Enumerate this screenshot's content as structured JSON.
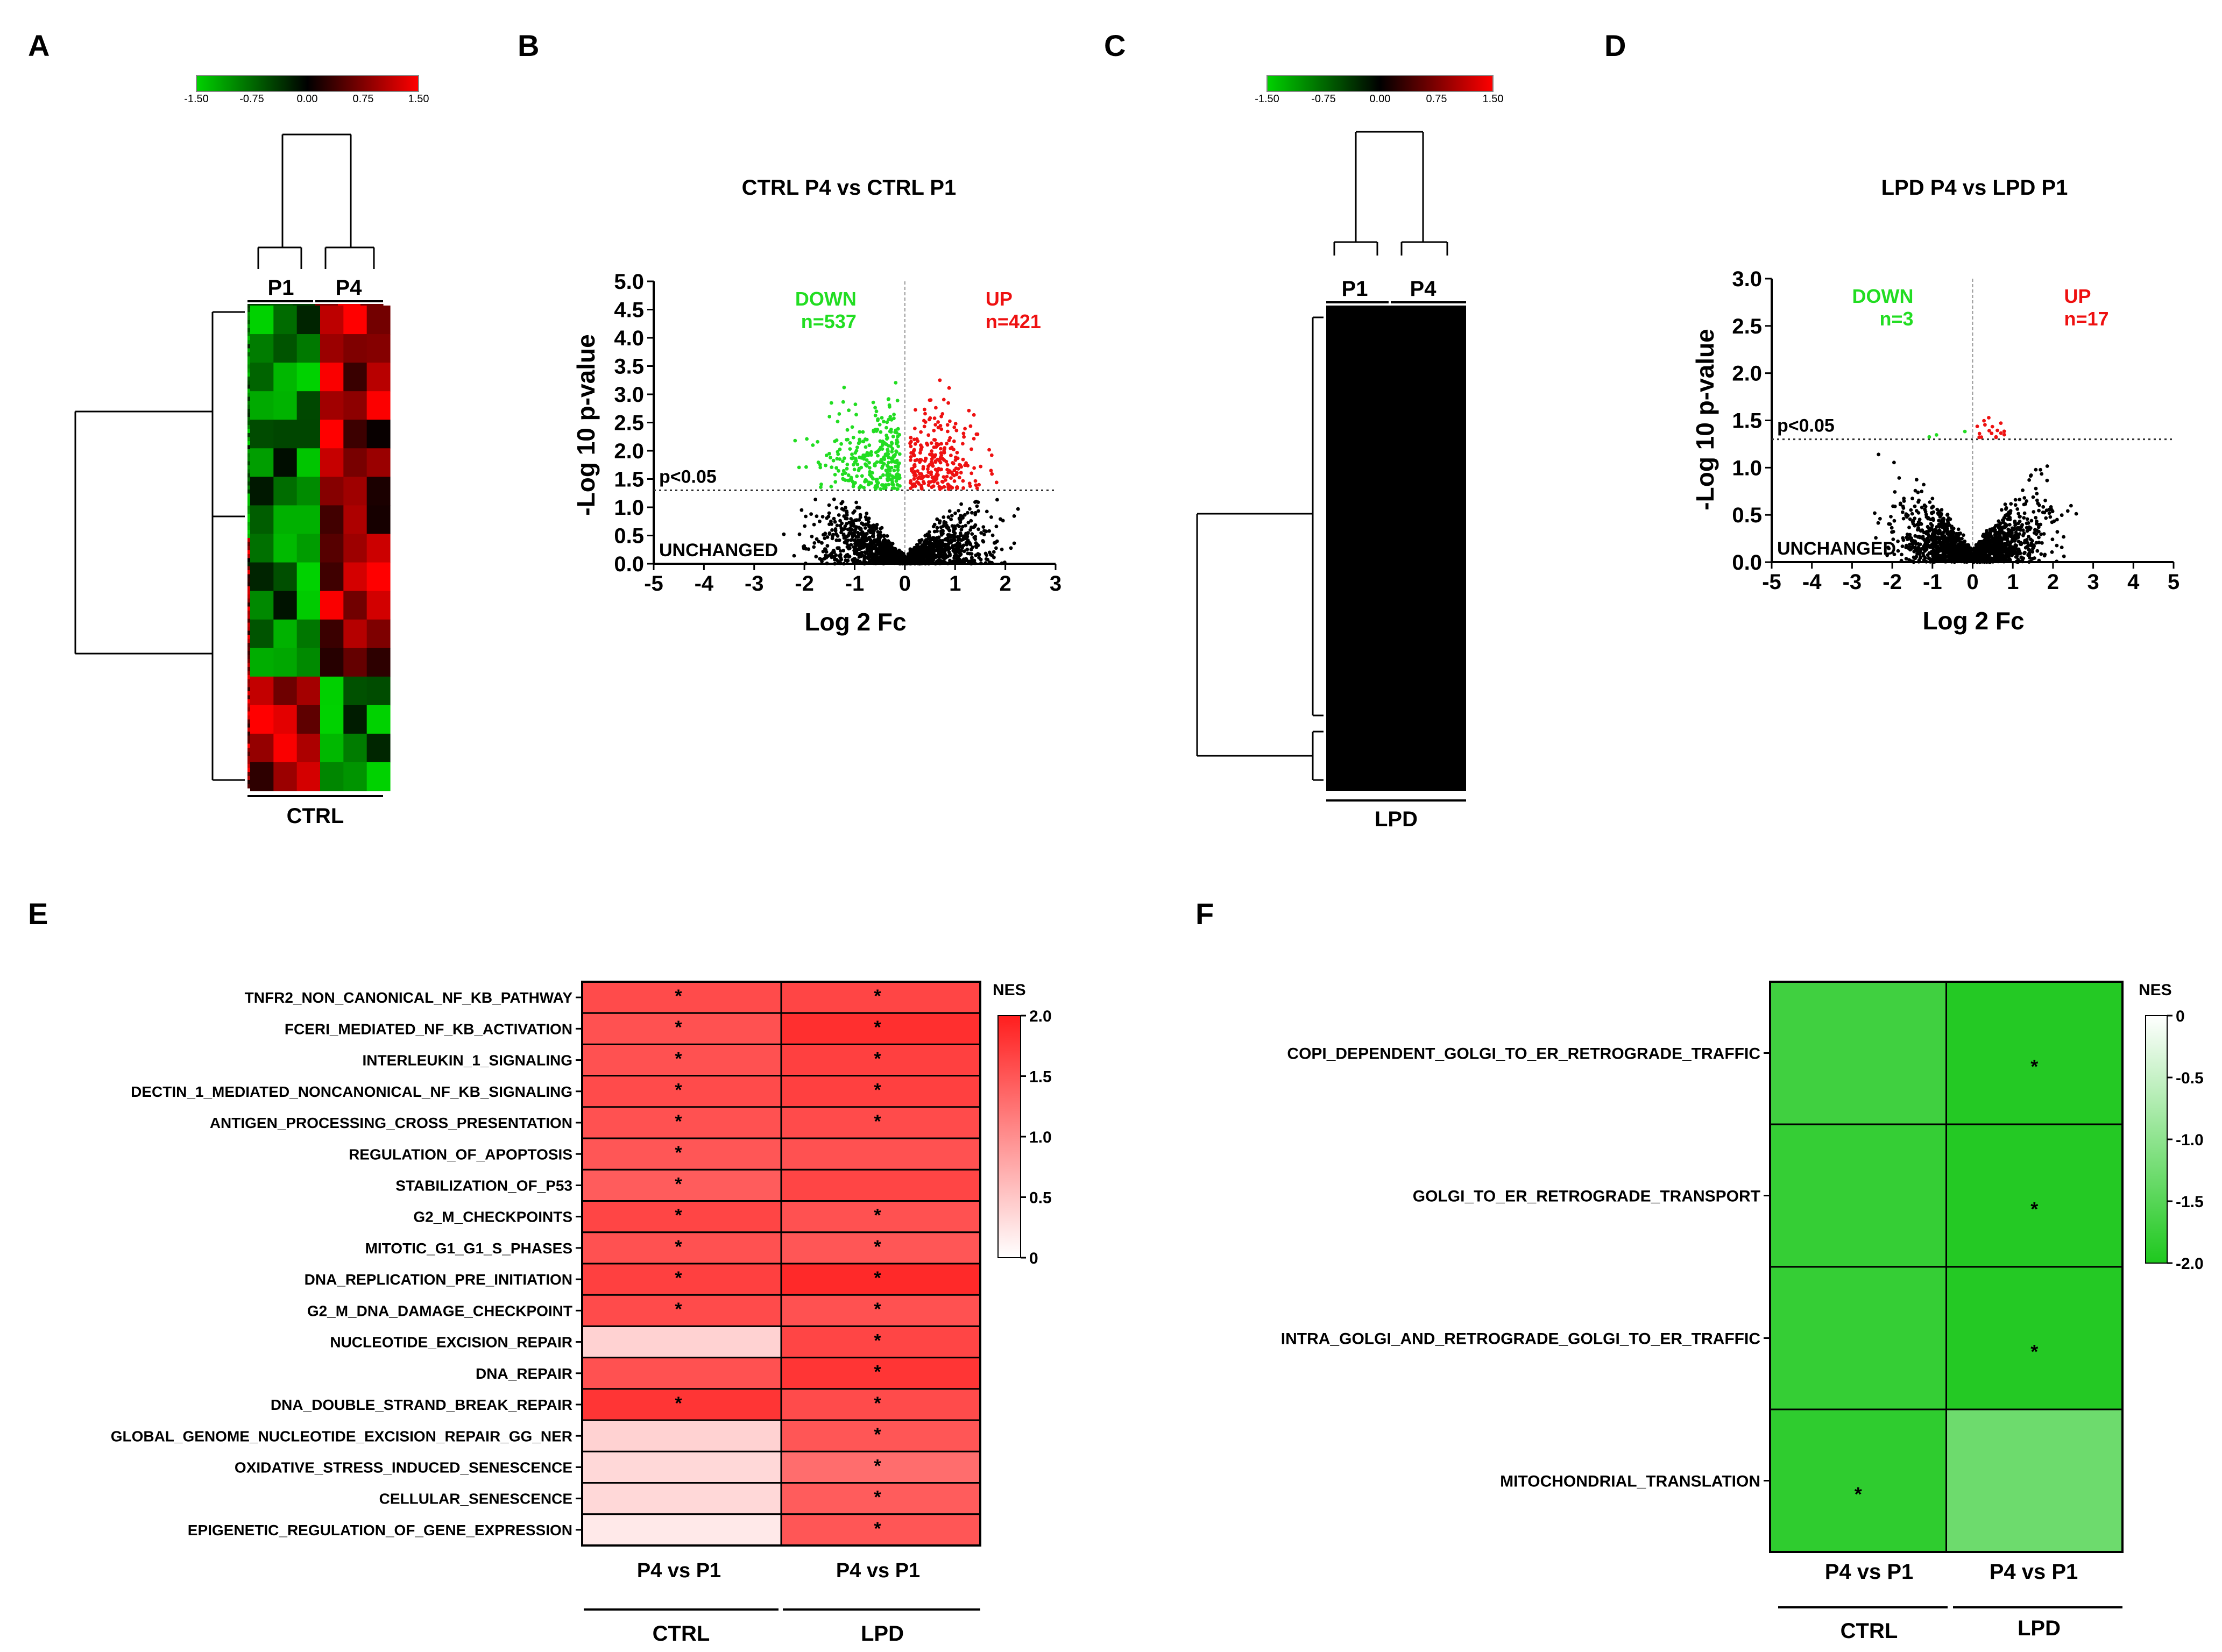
{
  "chart_data": [
    {
      "id": "A",
      "panel_label": "A",
      "type": "heatmap",
      "group_label": "CTRL",
      "column_groups": [
        "P1",
        "P4"
      ],
      "scale": {
        "min": -1.5,
        "max": 1.5,
        "ticks": [
          "-1.50",
          "-0.75",
          "0.00",
          "0.75",
          "1.50"
        ],
        "colors": [
          "#00d200",
          "#000000",
          "#ff0000"
        ]
      }
    },
    {
      "id": "B",
      "panel_label": "B",
      "type": "scatter",
      "title": "CTRL P4 vs CTRL P1",
      "xlabel": "Log 2 Fc",
      "ylabel": "-Log 10 p-value",
      "xlim": [
        -5,
        3
      ],
      "ylim": [
        0,
        5
      ],
      "xticks": [
        "-5",
        "-4",
        "-3",
        "-2",
        "-1",
        "0",
        "1",
        "2",
        "3"
      ],
      "yticks": [
        "0.0",
        "0.5",
        "1.0",
        "1.5",
        "2.0",
        "2.5",
        "3.0",
        "3.5",
        "4.0",
        "4.5",
        "5.0"
      ],
      "threshold": 1.3,
      "threshold_label": "p<0.05",
      "unchanged_label": "UNCHANGED",
      "down_label": "DOWN",
      "down_count": "n=537",
      "up_label": "UP",
      "up_count": "n=421",
      "colors": {
        "down": "#22dd22",
        "up": "#ee1111",
        "unchanged": "#000000"
      }
    },
    {
      "id": "C",
      "panel_label": "C",
      "type": "heatmap",
      "group_label": "LPD",
      "column_groups": [
        "P1",
        "P4"
      ],
      "scale": {
        "min": -1.5,
        "max": 1.5,
        "ticks": [
          "-1.50",
          "-0.75",
          "0.00",
          "0.75",
          "1.50"
        ],
        "colors": [
          "#00d200",
          "#000000",
          "#ff0000"
        ]
      }
    },
    {
      "id": "D",
      "panel_label": "D",
      "type": "scatter",
      "title": "LPD P4 vs LPD P1",
      "xlabel": "Log 2 Fc",
      "ylabel": "-Log 10 p-value",
      "xlim": [
        -5,
        5
      ],
      "ylim": [
        0,
        3
      ],
      "xticks": [
        "-5",
        "-4",
        "-3",
        "-2",
        "-1",
        "0",
        "1",
        "2",
        "3",
        "4",
        "5"
      ],
      "yticks": [
        "0.0",
        "0.5",
        "1.0",
        "1.5",
        "2.0",
        "2.5",
        "3.0"
      ],
      "threshold": 1.3,
      "threshold_label": "p<0.05",
      "unchanged_label": "UNCHANGED",
      "down_label": "DOWN",
      "down_count": "n=3",
      "up_label": "UP",
      "up_count": "n=17",
      "colors": {
        "down": "#22dd22",
        "up": "#ee1111",
        "unchanged": "#000000"
      }
    },
    {
      "id": "E",
      "panel_label": "E",
      "type": "heatmap",
      "columns": [
        "P4 vs P1",
        "P4 vs P1"
      ],
      "groups": [
        "CTRL",
        "LPD"
      ],
      "legend_title": "NES",
      "scale": {
        "min": 0,
        "max": 2,
        "ticks": [
          "0",
          "0.5",
          "1.0",
          "1.5",
          "2.0"
        ],
        "colors": [
          "#ffffff",
          "#ff1e1e"
        ]
      },
      "rows": [
        {
          "label": "TNFR2_NON_CANONICAL_NF_KB_PATHWAY",
          "values": [
            1.6,
            1.65
          ],
          "sig": [
            true,
            true
          ]
        },
        {
          "label": "FCERI_MEDIATED_NF_KB_ACTIVATION",
          "values": [
            1.55,
            1.85
          ],
          "sig": [
            true,
            true
          ]
        },
        {
          "label": "INTERLEUKIN_1_SIGNALING",
          "values": [
            1.55,
            1.7
          ],
          "sig": [
            true,
            true
          ]
        },
        {
          "label": "DECTIN_1_MEDIATED_NONCANONICAL_NF_KB_SIGNALING",
          "values": [
            1.6,
            1.7
          ],
          "sig": [
            true,
            true
          ]
        },
        {
          "label": "ANTIGEN_PROCESSING_CROSS_PRESENTATION",
          "values": [
            1.55,
            1.6
          ],
          "sig": [
            true,
            true
          ]
        },
        {
          "label": "REGULATION_OF_APOPTOSIS",
          "values": [
            1.5,
            1.55
          ],
          "sig": [
            true,
            false
          ]
        },
        {
          "label": "STABILIZATION_OF_P53",
          "values": [
            1.45,
            1.65
          ],
          "sig": [
            true,
            false
          ]
        },
        {
          "label": "G2_M_CHECKPOINTS",
          "values": [
            1.65,
            1.55
          ],
          "sig": [
            true,
            true
          ]
        },
        {
          "label": "MITOTIC_G1_G1_S_PHASES",
          "values": [
            1.55,
            1.5
          ],
          "sig": [
            true,
            true
          ]
        },
        {
          "label": "DNA_REPLICATION_PRE_INITIATION",
          "values": [
            1.7,
            1.9
          ],
          "sig": [
            true,
            true
          ]
        },
        {
          "label": "G2_M_DNA_DAMAGE_CHECKPOINT",
          "values": [
            1.6,
            1.55
          ],
          "sig": [
            true,
            true
          ]
        },
        {
          "label": "NUCLEOTIDE_EXCISION_REPAIR",
          "values": [
            0.4,
            1.65
          ],
          "sig": [
            false,
            true
          ]
        },
        {
          "label": "DNA_REPAIR",
          "values": [
            1.55,
            1.8
          ],
          "sig": [
            false,
            true
          ]
        },
        {
          "label": "DNA_DOUBLE_STRAND_BREAK_REPAIR",
          "values": [
            1.8,
            1.6
          ],
          "sig": [
            true,
            true
          ]
        },
        {
          "label": "GLOBAL_GENOME_NUCLEOTIDE_EXCISION_REPAIR_GG_NER",
          "values": [
            0.4,
            1.5
          ],
          "sig": [
            false,
            true
          ]
        },
        {
          "label": "OXIDATIVE_STRESS_INDUCED_SENESCENCE",
          "values": [
            0.35,
            1.3
          ],
          "sig": [
            false,
            true
          ]
        },
        {
          "label": "CELLULAR_SENESCENCE",
          "values": [
            0.35,
            1.45
          ],
          "sig": [
            false,
            true
          ]
        },
        {
          "label": "EPIGENETIC_REGULATION_OF_GENE_EXPRESSION",
          "values": [
            0.2,
            1.5
          ],
          "sig": [
            false,
            true
          ]
        }
      ]
    },
    {
      "id": "F",
      "panel_label": "F",
      "type": "heatmap",
      "columns": [
        "P4 vs P1",
        "P4 vs P1"
      ],
      "groups": [
        "CTRL",
        "LPD"
      ],
      "legend_title": "NES",
      "scale": {
        "min": -2,
        "max": 0,
        "ticks": [
          "0",
          "-0.5",
          "-1.0",
          "-1.5",
          "-2.0"
        ],
        "colors": [
          "#ffffff",
          "#1ec81e"
        ]
      },
      "rows": [
        {
          "label": "COPI_DEPENDENT_GOLGI_TO_ER_RETROGRADE_TRAFFIC",
          "values": [
            -1.7,
            -1.95
          ],
          "sig": [
            false,
            true
          ]
        },
        {
          "label": "GOLGI_TO_ER_RETROGRADE_TRANSPORT",
          "values": [
            -1.8,
            -1.95
          ],
          "sig": [
            false,
            true
          ]
        },
        {
          "label": "INTRA_GOLGI_AND_RETROGRADE_GOLGI_TO_ER_TRAFFIC",
          "values": [
            -1.8,
            -1.95
          ],
          "sig": [
            false,
            true
          ]
        },
        {
          "label": "MITOCHONDRIAL_TRANSLATION",
          "values": [
            -1.85,
            -1.3
          ],
          "sig": [
            true,
            false
          ]
        }
      ]
    }
  ]
}
